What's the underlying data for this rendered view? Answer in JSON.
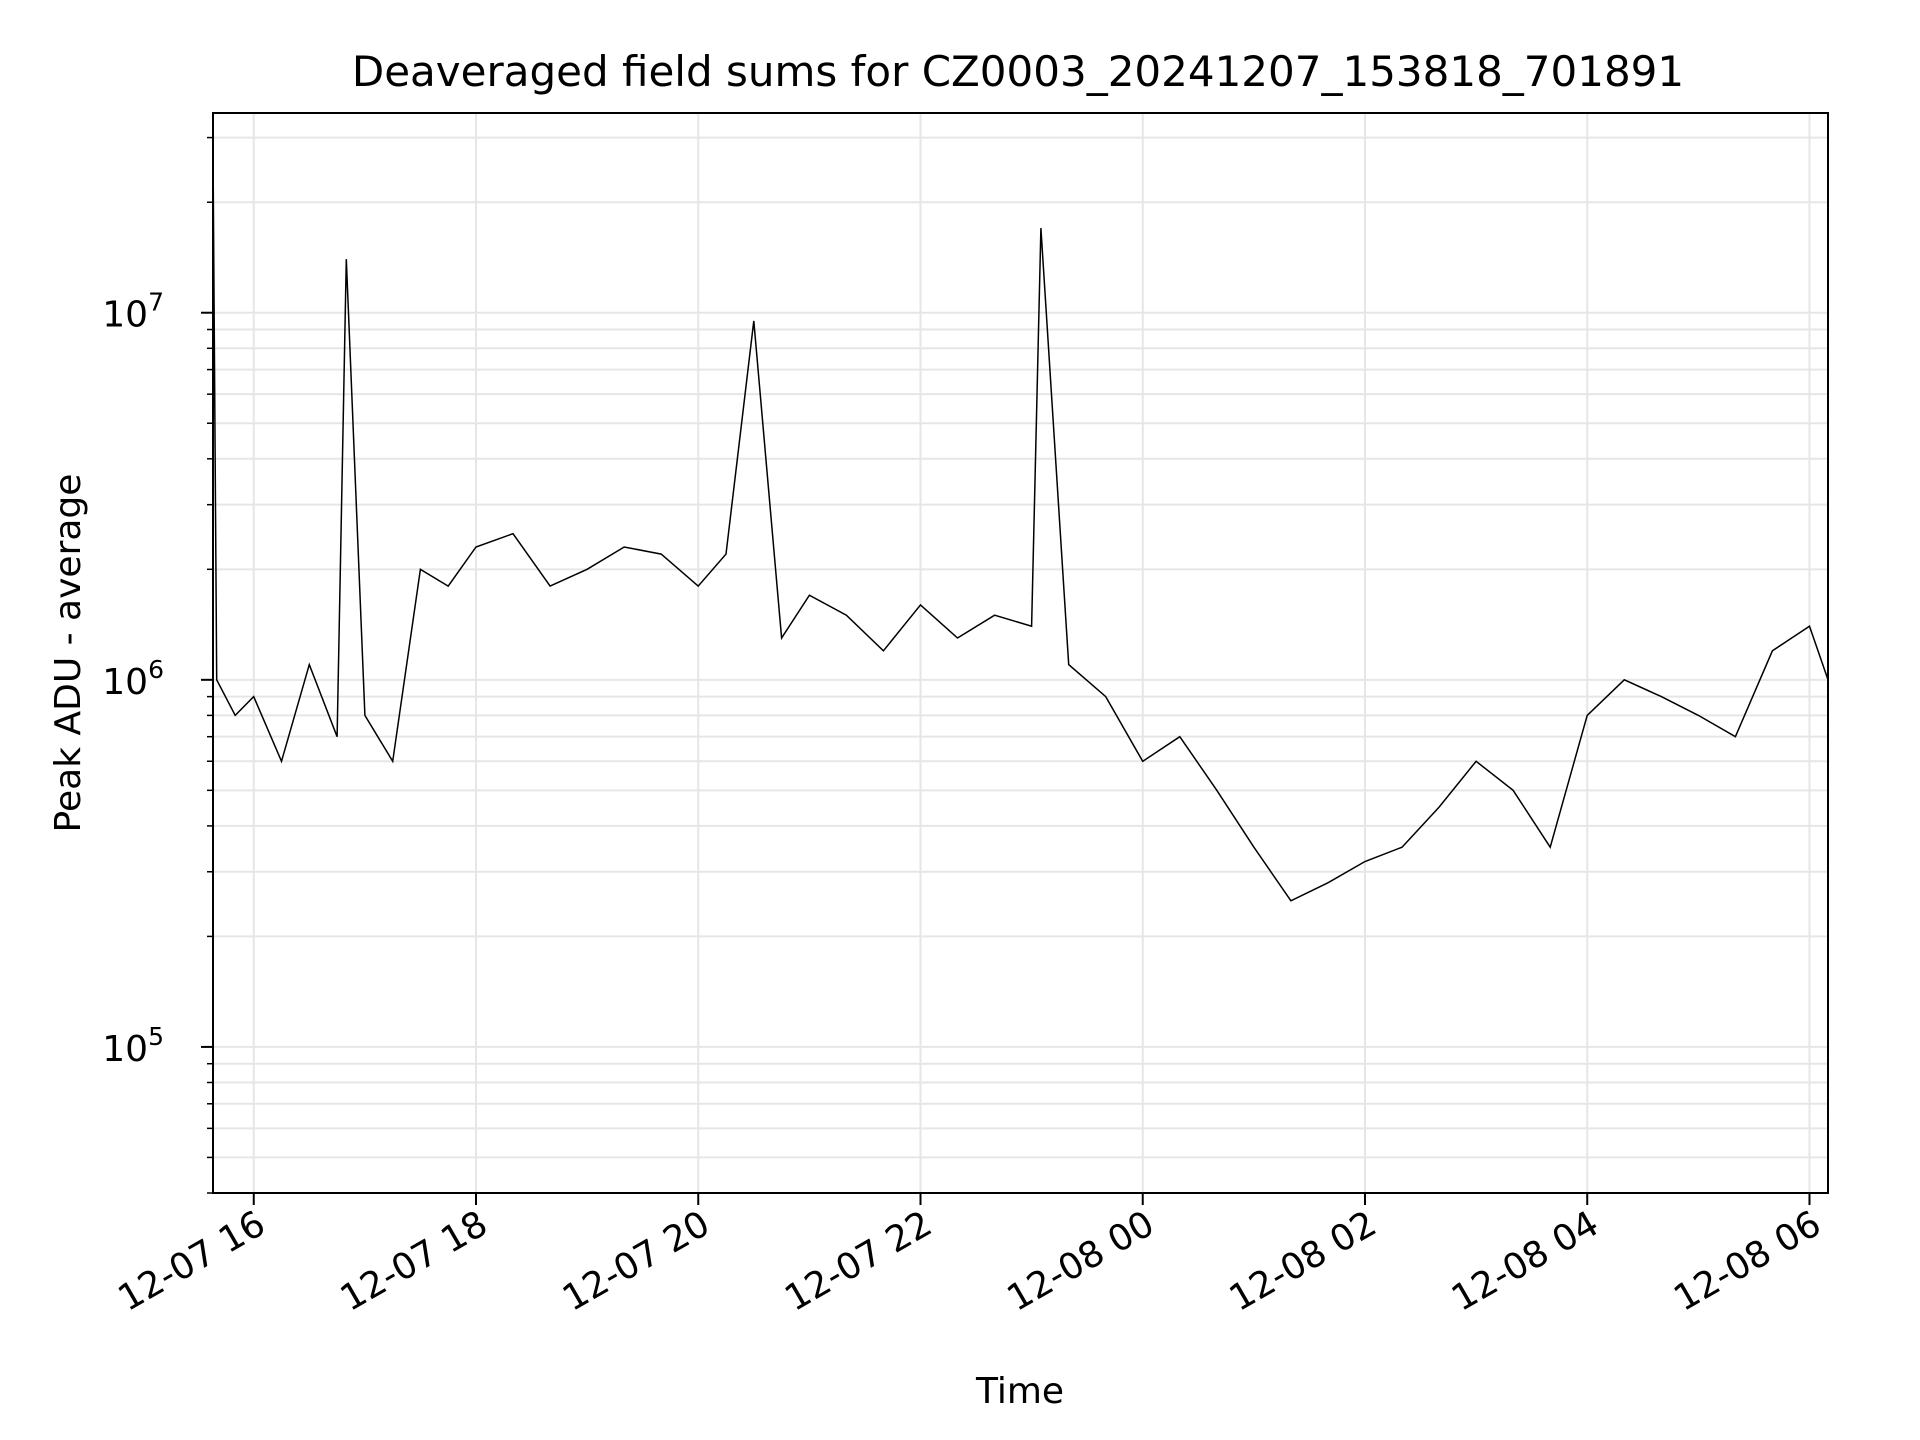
{
  "chart_data": {
    "type": "line",
    "title": "Deaveraged field sums for CZ0003_20241207_153818_701891",
    "xlabel": "Time",
    "ylabel": "Peak ADU - average",
    "x_range": [
      "2024-12-07 15:38",
      "2024-12-08 06:10"
    ],
    "y_scale": "log",
    "ylim": [
      40000,
      35000000
    ],
    "grid": true,
    "line_color": "#000000",
    "x_ticks": [
      {
        "value": "2024-12-07 16:00",
        "label": "12-07 16"
      },
      {
        "value": "2024-12-07 18:00",
        "label": "12-07 18"
      },
      {
        "value": "2024-12-07 20:00",
        "label": "12-07 20"
      },
      {
        "value": "2024-12-07 22:00",
        "label": "12-07 22"
      },
      {
        "value": "2024-12-08 00:00",
        "label": "12-08 00"
      },
      {
        "value": "2024-12-08 02:00",
        "label": "12-08 02"
      },
      {
        "value": "2024-12-08 04:00",
        "label": "12-08 04"
      },
      {
        "value": "2024-12-08 06:00",
        "label": "12-08 06"
      }
    ],
    "y_ticks": [
      {
        "value": 100000,
        "base": "10",
        "exp": "5"
      },
      {
        "value": 1000000,
        "base": "10",
        "exp": "6"
      },
      {
        "value": 10000000,
        "base": "10",
        "exp": "7"
      }
    ],
    "series": [
      {
        "x": [
          "2024-12-07 15:38",
          "2024-12-07 15:40",
          "2024-12-07 15:50",
          "2024-12-07 16:00",
          "2024-12-07 16:15",
          "2024-12-07 16:30",
          "2024-12-07 16:45",
          "2024-12-07 16:50",
          "2024-12-07 17:00",
          "2024-12-07 17:15",
          "2024-12-07 17:30",
          "2024-12-07 17:45",
          "2024-12-07 18:00",
          "2024-12-07 18:20",
          "2024-12-07 18:40",
          "2024-12-07 19:00",
          "2024-12-07 19:20",
          "2024-12-07 19:40",
          "2024-12-07 20:00",
          "2024-12-07 20:15",
          "2024-12-07 20:30",
          "2024-12-07 20:45",
          "2024-12-07 21:00",
          "2024-12-07 21:20",
          "2024-12-07 21:40",
          "2024-12-07 22:00",
          "2024-12-07 22:20",
          "2024-12-07 22:40",
          "2024-12-07 23:00",
          "2024-12-07 23:05",
          "2024-12-07 23:20",
          "2024-12-07 23:40",
          "2024-12-08 00:00",
          "2024-12-08 00:20",
          "2024-12-08 00:40",
          "2024-12-08 01:00",
          "2024-12-08 01:20",
          "2024-12-08 01:40",
          "2024-12-08 02:00",
          "2024-12-08 02:20",
          "2024-12-08 02:40",
          "2024-12-08 03:00",
          "2024-12-08 03:20",
          "2024-12-08 03:40",
          "2024-12-08 04:00",
          "2024-12-08 04:20",
          "2024-12-08 04:40",
          "2024-12-08 05:00",
          "2024-12-08 05:20",
          "2024-12-08 05:40",
          "2024-12-08 06:00",
          "2024-12-08 06:10"
        ],
        "y": [
          28000000,
          1000000,
          800000,
          900000,
          600000,
          1100000,
          700000,
          14000000,
          800000,
          600000,
          2000000,
          1800000,
          2300000,
          2500000,
          1800000,
          2000000,
          2300000,
          2200000,
          1800000,
          2200000,
          9500000,
          1300000,
          1700000,
          1500000,
          1200000,
          1600000,
          1300000,
          1500000,
          1400000,
          17000000,
          1100000,
          900000,
          600000,
          700000,
          500000,
          350000,
          250000,
          280000,
          320000,
          350000,
          450000,
          600000,
          500000,
          350000,
          800000,
          1000000,
          900000,
          800000,
          700000,
          1200000,
          1400000,
          1000000
        ]
      }
    ]
  }
}
